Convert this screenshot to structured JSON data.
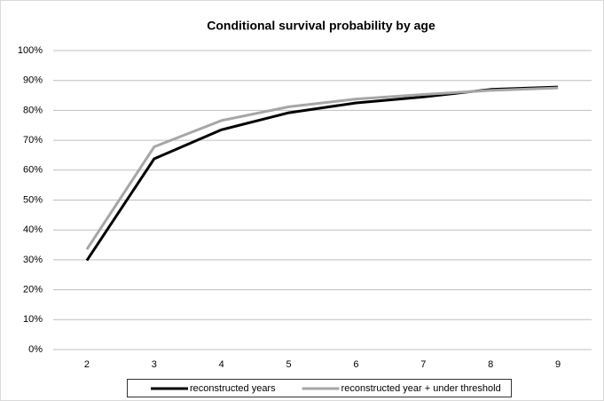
{
  "chart_data": {
    "type": "line",
    "title": "Conditional survival probability by age",
    "categories": [
      "2",
      "3",
      "4",
      "5",
      "6",
      "7",
      "8",
      "9"
    ],
    "series": [
      {
        "name": "reconstructed years",
        "color": "#000000",
        "values": [
          29.8,
          63.8,
          73.5,
          79.2,
          82.5,
          84.5,
          87.0,
          87.8
        ]
      },
      {
        "name": "reconstructed year + under threshold",
        "color": "#a6a6a6",
        "values": [
          33.5,
          67.8,
          76.6,
          81.2,
          83.8,
          85.3,
          86.7,
          87.5
        ]
      }
    ],
    "ylim": [
      0,
      100
    ],
    "yticks": [
      {
        "value": 0,
        "label": "0%"
      },
      {
        "value": 10,
        "label": "10%"
      },
      {
        "value": 20,
        "label": "20%"
      },
      {
        "value": 30,
        "label": "30%"
      },
      {
        "value": 40,
        "label": "40%"
      },
      {
        "value": 50,
        "label": "50%"
      },
      {
        "value": 60,
        "label": "60%"
      },
      {
        "value": 70,
        "label": "70%"
      },
      {
        "value": 80,
        "label": "80%"
      },
      {
        "value": 90,
        "label": "90%"
      },
      {
        "value": 100,
        "label": "100%"
      }
    ],
    "grid": true,
    "legend": "bottom"
  }
}
